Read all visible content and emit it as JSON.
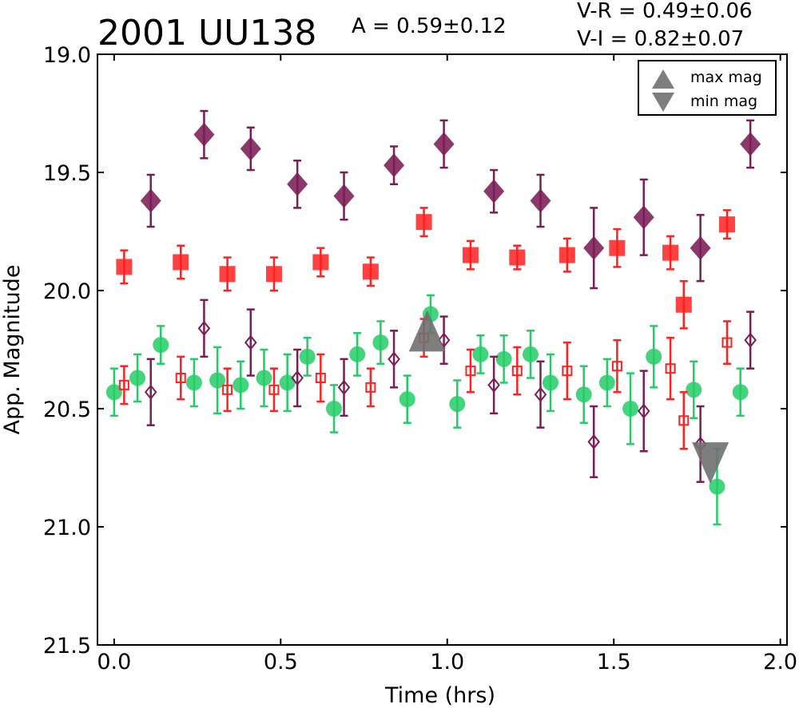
{
  "chart_data": {
    "type": "scatter",
    "title": "2001 UU138",
    "annotations": {
      "amplitude": "A  = 0.59±0.12",
      "v_r": "V-R = 0.49±0.06",
      "v_i": "V-I  = 0.82±0.07"
    },
    "xlabel": "Time (hrs)",
    "ylabel": "App. Magnitude",
    "xlim": [
      -0.05,
      2.02
    ],
    "ylim": [
      19.0,
      21.5
    ],
    "y_inverted": true,
    "grid": false,
    "x_ticks": [
      "0.0",
      "0.5",
      "1.0",
      "1.5",
      "2.0"
    ],
    "y_ticks": [
      "19.0",
      "19.5",
      "20.0",
      "20.5",
      "21.0",
      "21.5"
    ],
    "legend": {
      "placement": "top-right",
      "entries": [
        {
          "label": "max mag",
          "marker": "triangle-up",
          "color": "#707070"
        },
        {
          "label": "min mag",
          "marker": "triangle-down",
          "color": "#707070"
        }
      ]
    },
    "colors": {
      "purple": "#7b1d55",
      "red": "#ff2020",
      "green": "#22cc66",
      "extreme": "#707070"
    },
    "series": [
      {
        "marker": "diamond-filled",
        "color": "#7b1d55",
        "points": [
          [
            0.11,
            19.62,
            0.11
          ],
          [
            0.27,
            19.34,
            0.1
          ],
          [
            0.41,
            19.4,
            0.09
          ],
          [
            0.55,
            19.55,
            0.1
          ],
          [
            0.69,
            19.6,
            0.1
          ],
          [
            0.84,
            19.47,
            0.08
          ],
          [
            0.99,
            19.38,
            0.1
          ],
          [
            1.14,
            19.58,
            0.09
          ],
          [
            1.28,
            19.62,
            0.11
          ],
          [
            1.44,
            19.82,
            0.17
          ],
          [
            1.59,
            19.69,
            0.16
          ],
          [
            1.76,
            19.82,
            0.14
          ],
          [
            1.91,
            19.38,
            0.1
          ]
        ]
      },
      {
        "marker": "square-filled",
        "color": "#ff2020",
        "points": [
          [
            0.03,
            19.9,
            0.07
          ],
          [
            0.2,
            19.88,
            0.07
          ],
          [
            0.34,
            19.93,
            0.07
          ],
          [
            0.48,
            19.93,
            0.07
          ],
          [
            0.62,
            19.88,
            0.06
          ],
          [
            0.77,
            19.92,
            0.06
          ],
          [
            0.93,
            19.71,
            0.06
          ],
          [
            1.07,
            19.85,
            0.06
          ],
          [
            1.21,
            19.86,
            0.05
          ],
          [
            1.36,
            19.85,
            0.07
          ],
          [
            1.51,
            19.82,
            0.08
          ],
          [
            1.67,
            19.84,
            0.07
          ],
          [
            1.71,
            20.06,
            0.1
          ],
          [
            1.84,
            19.72,
            0.06
          ]
        ]
      },
      {
        "marker": "circle-filled",
        "color": "#22cc66",
        "points": [
          [
            0.0,
            20.43,
            0.1
          ],
          [
            0.07,
            20.37,
            0.1
          ],
          [
            0.14,
            20.23,
            0.08
          ],
          [
            0.24,
            20.39,
            0.1
          ],
          [
            0.31,
            20.38,
            0.14
          ],
          [
            0.38,
            20.4,
            0.1
          ],
          [
            0.45,
            20.37,
            0.12
          ],
          [
            0.52,
            20.39,
            0.12
          ],
          [
            0.58,
            20.28,
            0.08
          ],
          [
            0.66,
            20.5,
            0.1
          ],
          [
            0.73,
            20.27,
            0.09
          ],
          [
            0.8,
            20.22,
            0.09
          ],
          [
            0.88,
            20.46,
            0.1
          ],
          [
            0.95,
            20.1,
            0.08
          ],
          [
            1.03,
            20.48,
            0.1
          ],
          [
            1.1,
            20.27,
            0.08
          ],
          [
            1.17,
            20.29,
            0.1
          ],
          [
            1.25,
            20.27,
            0.1
          ],
          [
            1.31,
            20.39,
            0.12
          ],
          [
            1.41,
            20.44,
            0.12
          ],
          [
            1.48,
            20.39,
            0.1
          ],
          [
            1.55,
            20.5,
            0.15
          ],
          [
            1.62,
            20.28,
            0.13
          ],
          [
            1.74,
            20.42,
            0.12
          ],
          [
            1.81,
            20.83,
            0.16
          ],
          [
            1.88,
            20.43,
            0.1
          ]
        ]
      },
      {
        "marker": "diamond-open",
        "color": "#7b1d55",
        "points": [
          [
            0.11,
            20.43,
            0.14
          ],
          [
            0.27,
            20.16,
            0.12
          ],
          [
            0.41,
            20.22,
            0.14
          ],
          [
            0.55,
            20.37,
            0.12
          ],
          [
            0.69,
            20.41,
            0.12
          ],
          [
            0.84,
            20.29,
            0.12
          ],
          [
            0.99,
            20.21,
            0.1
          ],
          [
            1.14,
            20.4,
            0.12
          ],
          [
            1.28,
            20.44,
            0.14
          ],
          [
            1.44,
            20.64,
            0.15
          ],
          [
            1.59,
            20.51,
            0.17
          ],
          [
            1.76,
            20.65,
            0.16
          ],
          [
            1.91,
            20.21,
            0.12
          ]
        ]
      },
      {
        "marker": "square-open",
        "color": "#ff2020",
        "points": [
          [
            0.03,
            20.4,
            0.08
          ],
          [
            0.2,
            20.37,
            0.09
          ],
          [
            0.34,
            20.42,
            0.09
          ],
          [
            0.48,
            20.42,
            0.09
          ],
          [
            0.62,
            20.37,
            0.1
          ],
          [
            0.77,
            20.41,
            0.08
          ],
          [
            0.93,
            20.2,
            0.08
          ],
          [
            1.07,
            20.34,
            0.09
          ],
          [
            1.21,
            20.34,
            0.1
          ],
          [
            1.36,
            20.34,
            0.12
          ],
          [
            1.51,
            20.32,
            0.11
          ],
          [
            1.67,
            20.33,
            0.13
          ],
          [
            1.71,
            20.55,
            0.12
          ],
          [
            1.84,
            20.22,
            0.09
          ]
        ]
      }
    ],
    "extremes": [
      {
        "kind": "max",
        "x": 0.94,
        "y": 20.17
      },
      {
        "kind": "min",
        "x": 1.79,
        "y": 20.73
      }
    ]
  }
}
